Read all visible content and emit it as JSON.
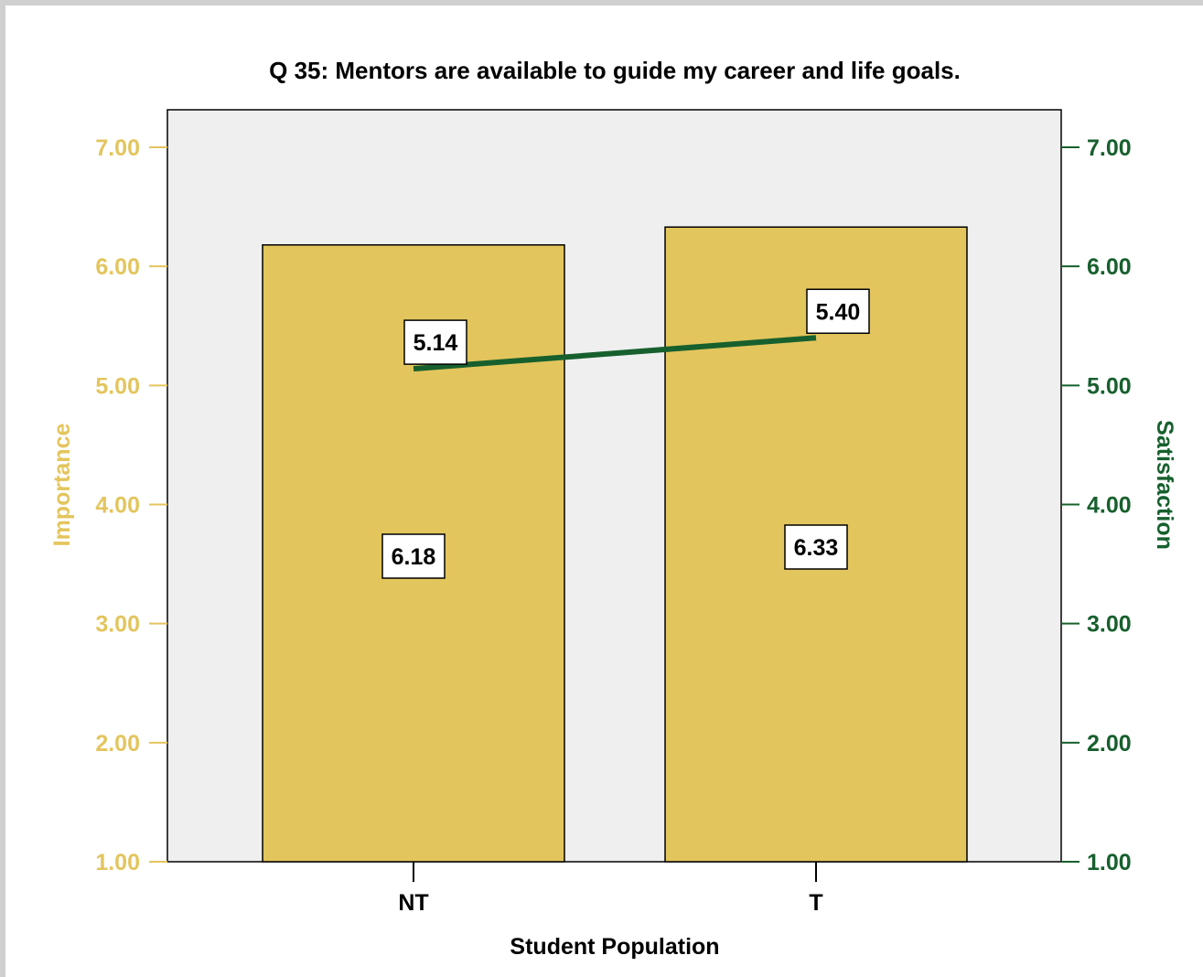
{
  "colors": {
    "importance": "#e3c55d",
    "satisfaction": "#17602e",
    "plot_bg": "#efefef",
    "bar_edge": "#000000"
  },
  "chart_data": {
    "type": "bar",
    "title": "Q 35: Mentors are available to guide my career and life goals.",
    "xlabel": "Student Population",
    "ylabel_left": "Importance",
    "ylabel_right": "Satisfaction",
    "categories": [
      "NT",
      "T"
    ],
    "ylim": [
      1.0,
      7.0
    ],
    "yticks": [
      "1.00",
      "2.00",
      "3.00",
      "4.00",
      "5.00",
      "6.00",
      "7.00"
    ],
    "grid": false,
    "series": [
      {
        "name": "Importance",
        "type": "bar",
        "axis": "left",
        "values": [
          6.18,
          6.33
        ],
        "labels": [
          "6.18",
          "6.33"
        ]
      },
      {
        "name": "Satisfaction",
        "type": "line",
        "axis": "right",
        "values": [
          5.14,
          5.4
        ],
        "labels": [
          "5.14",
          "5.40"
        ]
      }
    ]
  }
}
